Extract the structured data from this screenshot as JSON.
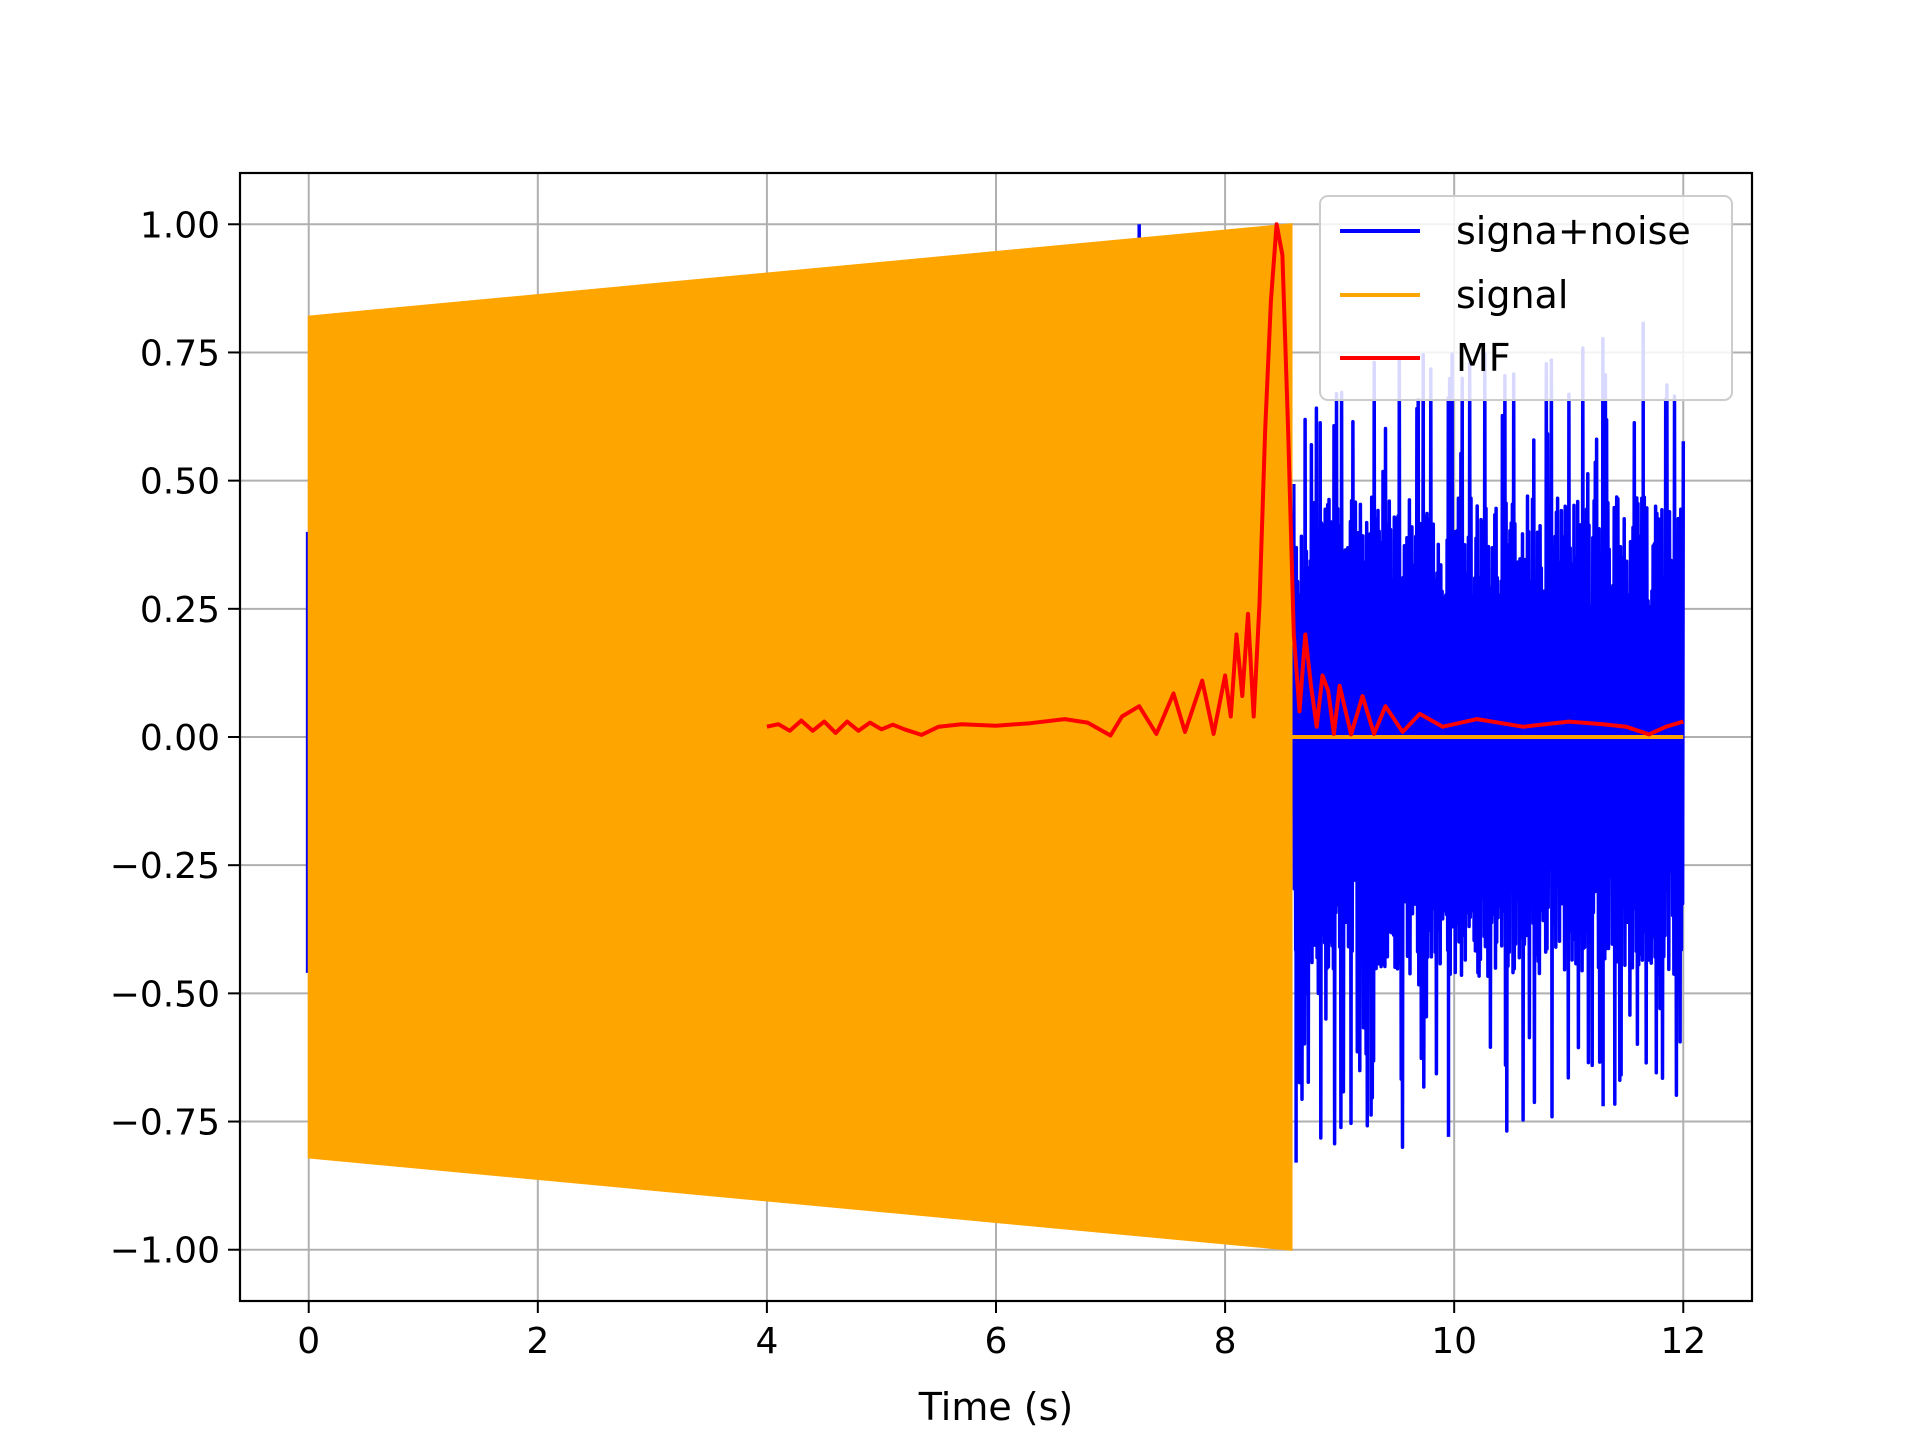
{
  "chart_data": {
    "type": "line",
    "title": "",
    "xlabel": "Time (s)",
    "ylabel": "",
    "xlim": [
      -0.6,
      12.6
    ],
    "ylim": [
      -1.1,
      1.1
    ],
    "xticks": [
      0,
      2,
      4,
      6,
      8,
      10,
      12
    ],
    "xtick_labels": [
      "0",
      "2",
      "4",
      "6",
      "8",
      "10",
      "12"
    ],
    "yticks": [
      1.0,
      0.75,
      0.5,
      0.25,
      0.0,
      -0.25,
      -0.5,
      -0.75,
      -1.0
    ],
    "ytick_labels": [
      "1.00",
      "0.75",
      "0.50",
      "0.25",
      "0.00",
      "−0.25",
      "−0.50",
      "−0.75",
      "−1.00"
    ],
    "grid": true,
    "legend_position": "top-right",
    "legend": [
      "signa+noise",
      "signal",
      "MF"
    ],
    "series": [
      {
        "name": "signa+noise",
        "color": "#0000ff",
        "kind": "noise-band",
        "description_x": [
          8.6,
          12.0
        ],
        "envelope_min": -0.83,
        "envelope_max": 0.8,
        "peaks": [
          {
            "x": 7.25,
            "y": 1.0
          },
          {
            "x": 8.62,
            "y": -0.83
          },
          {
            "x": 9.95,
            "y": -0.78
          },
          {
            "x": 11.65,
            "y": 0.81
          },
          {
            "x": 11.3,
            "y": 0.7
          },
          {
            "x": 11.3,
            "y": -0.72
          }
        ]
      },
      {
        "name": "signal",
        "color": "#ffa500",
        "kind": "chirp-band",
        "x": [
          0.0,
          8.58
        ],
        "upper": [
          0.82,
          1.0
        ],
        "lower": [
          -0.82,
          -1.0
        ],
        "after": {
          "x": [
            8.58,
            12.0
          ],
          "y": 0.0
        }
      },
      {
        "name": "MF",
        "color": "#ff0000",
        "kind": "line",
        "x": [
          4.0,
          4.1,
          4.2,
          4.3,
          4.4,
          4.5,
          4.6,
          4.7,
          4.8,
          4.9,
          5.0,
          5.1,
          5.2,
          5.35,
          5.5,
          5.7,
          6.0,
          6.3,
          6.6,
          6.8,
          7.0,
          7.1,
          7.25,
          7.4,
          7.55,
          7.65,
          7.8,
          7.9,
          8.0,
          8.05,
          8.1,
          8.15,
          8.2,
          8.25,
          8.3,
          8.35,
          8.4,
          8.45,
          8.5,
          8.55,
          8.6,
          8.65,
          8.7,
          8.75,
          8.8,
          8.85,
          8.9,
          8.95,
          9.0,
          9.1,
          9.2,
          9.3,
          9.4,
          9.55,
          9.7,
          9.9,
          10.2,
          10.6,
          11.0,
          11.3,
          11.5,
          11.7,
          11.85,
          12.0
        ],
        "y": [
          0.02,
          0.025,
          0.012,
          0.032,
          0.012,
          0.03,
          0.008,
          0.03,
          0.012,
          0.028,
          0.015,
          0.024,
          0.015,
          0.004,
          0.02,
          0.025,
          0.022,
          0.027,
          0.035,
          0.028,
          0.003,
          0.04,
          0.06,
          0.006,
          0.085,
          0.01,
          0.11,
          0.006,
          0.12,
          0.04,
          0.2,
          0.08,
          0.24,
          0.04,
          0.26,
          0.6,
          0.85,
          1.0,
          0.94,
          0.6,
          0.2,
          0.05,
          0.2,
          0.1,
          0.02,
          0.12,
          0.09,
          0.006,
          0.1,
          0.005,
          0.08,
          0.006,
          0.06,
          0.01,
          0.045,
          0.02,
          0.035,
          0.02,
          0.03,
          0.025,
          0.02,
          0.005,
          0.02,
          0.03
        ]
      }
    ]
  }
}
